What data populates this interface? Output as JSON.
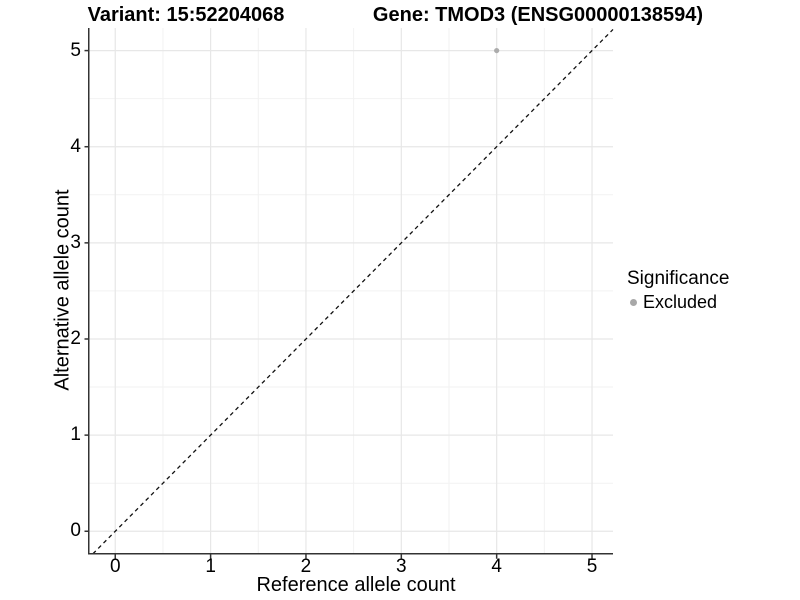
{
  "figure": {
    "title_left": "Variant: 15:52204068",
    "title_right": "Gene: TMOD3 (ENSG00000138594)"
  },
  "chart_data": {
    "type": "scatter",
    "titles": [
      "Variant: 15:52204068",
      "Gene: TMOD3 (ENSG00000138594)"
    ],
    "xlabel": "Reference allele count",
    "ylabel": "Alternative allele count",
    "x_ticks": [
      0,
      1,
      2,
      3,
      4,
      5
    ],
    "y_ticks": [
      0,
      1,
      2,
      3,
      4,
      5
    ],
    "x_minor": [
      0.5,
      1.5,
      2.5,
      3.5,
      4.5
    ],
    "y_minor": [
      0.5,
      1.5,
      2.5,
      3.5,
      4.5
    ],
    "xlim": [
      -0.278,
      5.22
    ],
    "ylim": [
      -0.234,
      5.235
    ],
    "grid": true,
    "series": [
      {
        "name": "Excluded",
        "color": "#acacac",
        "points": [
          {
            "x": 4,
            "y": 5
          }
        ]
      }
    ],
    "reference_line": {
      "style": "dashed",
      "slope": 1,
      "intercept": 0,
      "from": [
        -0.234,
        -0.234
      ],
      "to": [
        5.22,
        5.22
      ],
      "color": "#111111"
    },
    "legend": {
      "title": "Significance",
      "position": "right",
      "items": [
        {
          "label": "Excluded",
          "color": "#a8a8a8"
        }
      ]
    }
  },
  "colors": {
    "background": "#ffffff",
    "axis": "#333333",
    "grid_major": "#e7e7e7",
    "grid_minor": "#f2f2f2",
    "text": "#000000"
  }
}
